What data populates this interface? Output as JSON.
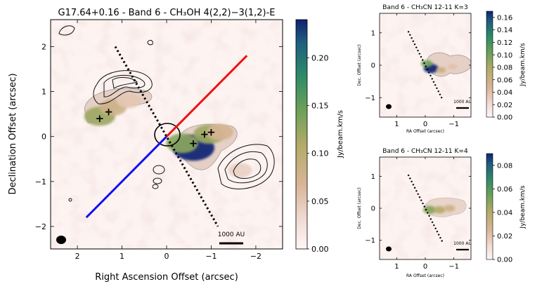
{
  "chart_data": [
    {
      "id": "main",
      "type": "heatmap",
      "title": "G17.64+0.16 - Band 6 - CH₃OH 4(2,2)−3(1,2)-E",
      "xlabel": "Right Ascension Offset (arcsec)",
      "ylabel": "Declination Offset (arcsec)",
      "xlim": [
        2.6,
        -2.6
      ],
      "ylim": [
        -2.5,
        2.6
      ],
      "xticks": [
        2,
        1,
        0,
        -1,
        -2
      ],
      "yticks": [
        2,
        1,
        0,
        -1,
        -2
      ],
      "colorbar": {
        "label": "Jy/beam.km/s",
        "range": [
          0.0,
          0.24
        ],
        "ticks": [
          0.0,
          0.05,
          0.1,
          0.15,
          0.2
        ],
        "tick_labels": [
          "0.00",
          "0.05",
          "0.10",
          "0.15",
          "0.20"
        ]
      },
      "scale_bar_label": "1000 AU",
      "emission_blobs": [
        {
          "x": -0.6,
          "y": -0.25,
          "value": 0.24
        },
        {
          "x": -0.35,
          "y": -0.15,
          "value": 0.13
        },
        {
          "x": -0.95,
          "y": 0.05,
          "value": 0.12
        },
        {
          "x": -1.2,
          "y": 0.1,
          "value": 0.07
        },
        {
          "x": 1.5,
          "y": 0.45,
          "value": 0.12
        },
        {
          "x": 1.2,
          "y": 0.65,
          "value": 0.08
        },
        {
          "x": 0.85,
          "y": 0.8,
          "value": 0.05
        },
        {
          "x": -1.65,
          "y": -0.75,
          "value": 0.04
        }
      ],
      "markers": [
        {
          "label": "+",
          "x": 1.3,
          "y": 0.55
        },
        {
          "label": "+",
          "x": 1.5,
          "y": 0.4
        },
        {
          "label": "+",
          "x": -0.6,
          "y": -0.15
        },
        {
          "label": "+",
          "x": -0.85,
          "y": 0.05
        },
        {
          "label": "+",
          "x": -1.0,
          "y": 0.1
        }
      ],
      "lines": {
        "outflow_red": {
          "color": "#ee1111",
          "from": [
            0.0,
            0.0
          ],
          "to": [
            -1.8,
            1.8
          ]
        },
        "outflow_blue": {
          "color": "#1111ee",
          "from": [
            0.0,
            0.0
          ],
          "to": [
            1.8,
            -1.8
          ]
        },
        "dotted_axis": {
          "color": "#000000",
          "from": [
            1.15,
            2.0
          ],
          "to": [
            -1.15,
            -2.0
          ]
        }
      }
    },
    {
      "id": "k3",
      "type": "heatmap",
      "title": "Band 6 - CH₃CN 12-11 K=3",
      "xlabel": "RA Offset (arcsec)",
      "ylabel": "Dec. Offset (arcsec)",
      "xlim": [
        1.6,
        -1.6
      ],
      "ylim": [
        -1.6,
        1.6
      ],
      "xticks": [
        1,
        0,
        -1
      ],
      "yticks": [
        1,
        0,
        -1
      ],
      "colorbar": {
        "label": "Jy/beam.km/s",
        "range": [
          0.0,
          0.17
        ],
        "ticks": [
          0.0,
          0.02,
          0.04,
          0.06,
          0.08,
          0.1,
          0.12,
          0.14,
          0.16
        ],
        "tick_labels": [
          "0.00",
          "0.02",
          "0.04",
          "0.06",
          "0.08",
          "0.10",
          "0.12",
          "0.14",
          "0.16"
        ]
      },
      "scale_bar_label": "1000 AU",
      "emission_blobs": [
        {
          "x": -0.2,
          "y": -0.1,
          "value": 0.17
        },
        {
          "x": -0.05,
          "y": 0.05,
          "value": 0.1
        },
        {
          "x": -0.55,
          "y": -0.15,
          "value": 0.06
        },
        {
          "x": -0.95,
          "y": -0.05,
          "value": 0.04
        }
      ],
      "dotted_axis": {
        "from": [
          0.6,
          1.05
        ],
        "to": [
          -0.6,
          -1.05
        ]
      }
    },
    {
      "id": "k4",
      "type": "heatmap",
      "title": "Band 6 - CH₃CN 12-11 K=4",
      "xlabel": "RA Offset (arcsec)",
      "ylabel": "Dec. Offset (arcsec)",
      "xlim": [
        1.6,
        -1.6
      ],
      "ylim": [
        -1.6,
        1.6
      ],
      "xticks": [
        1,
        0,
        -1
      ],
      "yticks": [
        1,
        0,
        -1
      ],
      "colorbar": {
        "label": "Jy/beam.km/s",
        "range": [
          0.0,
          0.09
        ],
        "ticks": [
          0.0,
          0.02,
          0.04,
          0.06,
          0.08
        ],
        "tick_labels": [
          "0.00",
          "0.02",
          "0.04",
          "0.06",
          "0.08"
        ]
      },
      "scale_bar_label": "1000 AU",
      "emission_blobs": [
        {
          "x": -0.15,
          "y": -0.05,
          "value": 0.05
        },
        {
          "x": -0.5,
          "y": -0.05,
          "value": 0.04
        },
        {
          "x": -0.85,
          "y": 0.0,
          "value": 0.03
        }
      ],
      "dotted_axis": {
        "from": [
          0.6,
          1.05
        ],
        "to": [
          -0.6,
          -1.05
        ]
      }
    }
  ]
}
